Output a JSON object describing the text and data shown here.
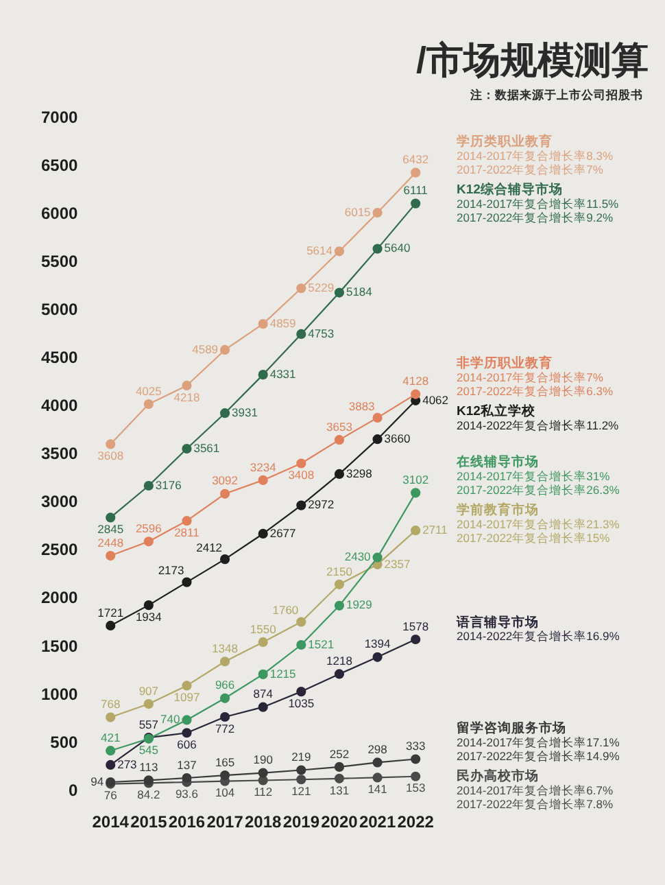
{
  "chart_data": {
    "type": "line",
    "title": "/市场规模测算",
    "categories": [
      "2014",
      "2015",
      "2016",
      "2017",
      "2018",
      "2019",
      "2020",
      "2021",
      "2022"
    ],
    "series": [
      {
        "name": "学历类职业教育",
        "color": "#dca07c",
        "values": [
          3608,
          4025,
          4218,
          4589,
          4859,
          5229,
          5614,
          6015,
          6432
        ]
      },
      {
        "name": "K12综合辅导市场",
        "color": "#2f6b4c",
        "values": [
          2845,
          3176,
          3561,
          3931,
          4331,
          4753,
          5184,
          5640,
          6111
        ]
      },
      {
        "name": "非学历职业教育",
        "color": "#e0805c",
        "values": [
          2448,
          2596,
          2811,
          3092,
          3234,
          3408,
          3653,
          3883,
          4128
        ]
      },
      {
        "name": "K12私立学校",
        "color": "#1e1e1e",
        "values": [
          1721,
          1934,
          2173,
          2412,
          2677,
          2972,
          3298,
          3660,
          4062
        ]
      },
      {
        "name": "在线辅导市场",
        "color": "#3c9760",
        "values": [
          421,
          545,
          740,
          966,
          1215,
          1521,
          1929,
          2430,
          3102
        ]
      },
      {
        "name": "学前教育市场",
        "color": "#b3a866",
        "values": [
          768,
          907,
          1097,
          1348,
          1550,
          1760,
          2150,
          2357,
          2711
        ]
      },
      {
        "name": "语言辅导市场",
        "color": "#2a2538",
        "values": [
          273,
          557,
          606,
          772,
          874,
          1035,
          1218,
          1394,
          1578
        ]
      },
      {
        "name": "留学咨询服务市场",
        "color": "#3a3a3a",
        "values": [
          94,
          113,
          137,
          165,
          190,
          219,
          252,
          298,
          333
        ]
      },
      {
        "name": "民办高校市场",
        "color": "#4a4a4a",
        "values": [
          76,
          84.2,
          93.6,
          104,
          112,
          121,
          131,
          141,
          153
        ]
      }
    ],
    "ylim": [
      0,
      7000
    ],
    "yticks": [
      0,
      500,
      1000,
      1500,
      2000,
      2500,
      3000,
      3500,
      4000,
      4500,
      5000,
      5500,
      6000,
      6500,
      7000
    ],
    "marker": "circle",
    "data_labels": true,
    "annotations": [
      "2014-2017年复合增长率8.3%\n2017-2022年复合增长率7%",
      "2014-2017年复合增长率11.5%\n2017-2022年复合增长率9.2%",
      "2014-2017年复合增长率7%\n2017-2022年复合增长率6.3%",
      "2014-2022年复合增长率11.2%",
      "2014-2017年复合增长率31%\n2017-2022年复合增长率26.3%",
      "2014-2017年复合增长率21.3%\n2017-2022年复合增长率15%",
      "2014-2022年复合增长率16.9%",
      "2014-2017年复合增长率17.1%\n2017-2022年复合增长率14.9%",
      "2014-2017年复合增长率6.7%\n2017-2022年复合增长率7.8%",
      "注：数据来源于上市公司招股书"
    ]
  }
}
